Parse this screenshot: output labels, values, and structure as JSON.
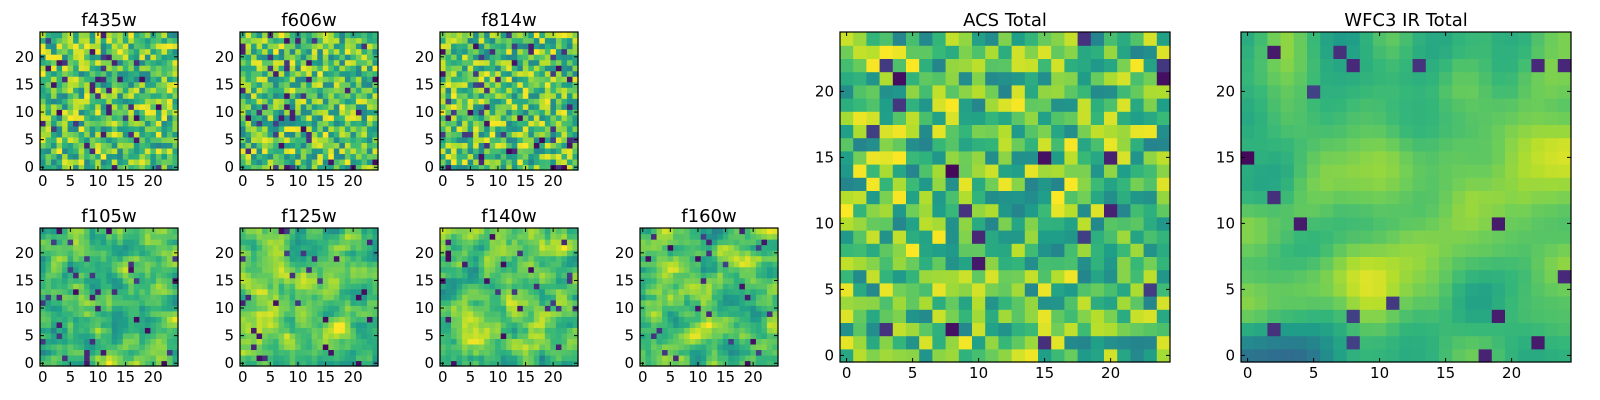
{
  "figure": {
    "background": "#ffffff",
    "colormap": "viridis"
  },
  "chart_data": [
    {
      "type": "heatmap",
      "title": "f435w",
      "xlim": [
        0,
        24
      ],
      "ylim": [
        0,
        24
      ],
      "xticks": [
        "0",
        "5",
        "10",
        "15",
        "20"
      ],
      "yticks": [
        "0",
        "5",
        "10",
        "15",
        "20"
      ],
      "grid_size": 25,
      "seed": 11,
      "style": "noise",
      "dark": 0.06
    },
    {
      "type": "heatmap",
      "title": "f606w",
      "xlim": [
        0,
        24
      ],
      "ylim": [
        0,
        24
      ],
      "xticks": [
        "0",
        "5",
        "10",
        "15",
        "20"
      ],
      "yticks": [
        "0",
        "5",
        "10",
        "15",
        "20"
      ],
      "grid_size": 25,
      "seed": 23,
      "style": "noise",
      "dark": 0.06
    },
    {
      "type": "heatmap",
      "title": "f814w",
      "xlim": [
        0,
        24
      ],
      "ylim": [
        0,
        24
      ],
      "xticks": [
        "0",
        "5",
        "10",
        "15",
        "20"
      ],
      "yticks": [
        "0",
        "5",
        "10",
        "15",
        "20"
      ],
      "grid_size": 25,
      "seed": 37,
      "style": "noise",
      "dark": 0.06
    },
    {
      "type": "heatmap",
      "title": "f105w",
      "xlim": [
        0,
        24
      ],
      "ylim": [
        0,
        24
      ],
      "xticks": [
        "0",
        "5",
        "10",
        "15",
        "20"
      ],
      "yticks": [
        "0",
        "5",
        "10",
        "15",
        "20"
      ],
      "grid_size": 25,
      "seed": 41,
      "style": "smooth",
      "dark": 0.05
    },
    {
      "type": "heatmap",
      "title": "f125w",
      "xlim": [
        0,
        24
      ],
      "ylim": [
        0,
        24
      ],
      "xticks": [
        "0",
        "5",
        "10",
        "15",
        "20"
      ],
      "yticks": [
        "0",
        "5",
        "10",
        "15",
        "20"
      ],
      "grid_size": 25,
      "seed": 53,
      "style": "smooth",
      "dark": 0.05
    },
    {
      "type": "heatmap",
      "title": "f140w",
      "xlim": [
        0,
        24
      ],
      "ylim": [
        0,
        24
      ],
      "xticks": [
        "0",
        "5",
        "10",
        "15",
        "20"
      ],
      "yticks": [
        "0",
        "5",
        "10",
        "15",
        "20"
      ],
      "grid_size": 25,
      "seed": 67,
      "style": "smooth",
      "dark": 0.04
    },
    {
      "type": "heatmap",
      "title": "f160w",
      "xlim": [
        0,
        24
      ],
      "ylim": [
        0,
        24
      ],
      "xticks": [
        "0",
        "5",
        "10",
        "15",
        "20"
      ],
      "yticks": [
        "0",
        "5",
        "10",
        "15",
        "20"
      ],
      "grid_size": 25,
      "seed": 71,
      "style": "smooth",
      "dark": 0.04
    },
    {
      "type": "heatmap",
      "title": "ACS Total",
      "xlim": [
        0,
        24
      ],
      "ylim": [
        0,
        24
      ],
      "xticks": [
        "0",
        "5",
        "10",
        "15",
        "20"
      ],
      "yticks": [
        "0",
        "5",
        "10",
        "15",
        "20"
      ],
      "grid_size": 25,
      "seed": 83,
      "style": "noise",
      "dark": 0.03
    },
    {
      "type": "heatmap",
      "title": "WFC3 IR Total",
      "xlim": [
        0,
        24
      ],
      "ylim": [
        0,
        24
      ],
      "xticks": [
        "0",
        "5",
        "10",
        "15",
        "20"
      ],
      "yticks": [
        "0",
        "5",
        "10",
        "15",
        "20"
      ],
      "grid_size": 25,
      "seed": 97,
      "style": "ir",
      "dark": 0.02
    }
  ]
}
